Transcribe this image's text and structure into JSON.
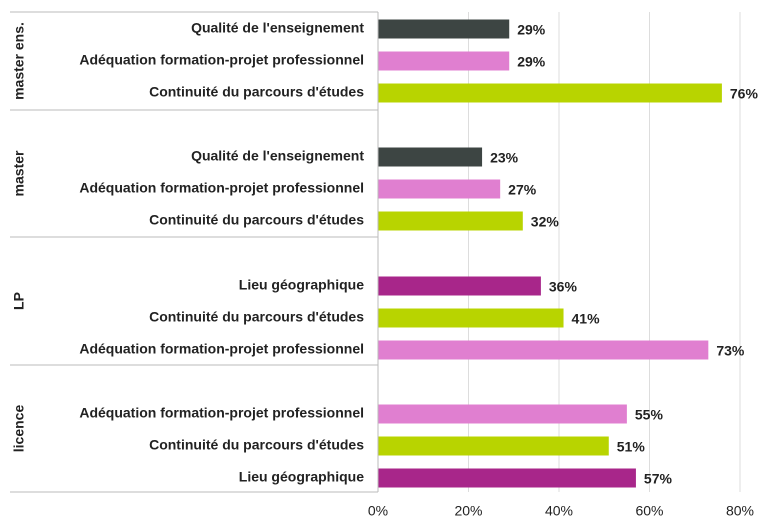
{
  "chart_data": {
    "type": "bar",
    "xlim": [
      0,
      80
    ],
    "xticks": [
      {
        "value": 0,
        "label": "0%"
      },
      {
        "value": 20,
        "label": "20%"
      },
      {
        "value": 40,
        "label": "40%"
      },
      {
        "value": 60,
        "label": "60%"
      },
      {
        "value": 80,
        "label": "80%"
      }
    ],
    "grid": true,
    "groups": [
      {
        "name": "master ens.",
        "categories": [
          "Qualité de l'enseignement",
          "Adéquation formation-projet professionnel",
          "Continuité du parcours d'études"
        ],
        "values": [
          29,
          29,
          76
        ],
        "value_labels": [
          "29%",
          "29%",
          "76%"
        ],
        "colors": [
          "#3d4543",
          "#e07fd0",
          "#b8d400"
        ]
      },
      {
        "name": "master",
        "categories": [
          "Qualité de l'enseignement",
          "Adéquation formation-projet professionnel",
          "Continuité du parcours d'études"
        ],
        "values": [
          23,
          27,
          32
        ],
        "value_labels": [
          "23%",
          "27%",
          "32%"
        ],
        "colors": [
          "#3d4543",
          "#e07fd0",
          "#b8d400"
        ]
      },
      {
        "name": "LP",
        "categories": [
          "Lieu géographique",
          "Continuité du parcours d'études",
          "Adéquation formation-projet professionnel"
        ],
        "values": [
          36,
          41,
          73
        ],
        "value_labels": [
          "36%",
          "41%",
          "73%"
        ],
        "colors": [
          "#a8268a",
          "#b8d400",
          "#e07fd0"
        ]
      },
      {
        "name": "licence",
        "categories": [
          "Adéquation formation-projet professionnel",
          "Continuité du parcours d'études",
          "Lieu géographique"
        ],
        "values": [
          55,
          51,
          57
        ],
        "value_labels": [
          "55%",
          "51%",
          "57%"
        ],
        "colors": [
          "#e07fd0",
          "#b8d400",
          "#a8268a"
        ]
      }
    ]
  }
}
